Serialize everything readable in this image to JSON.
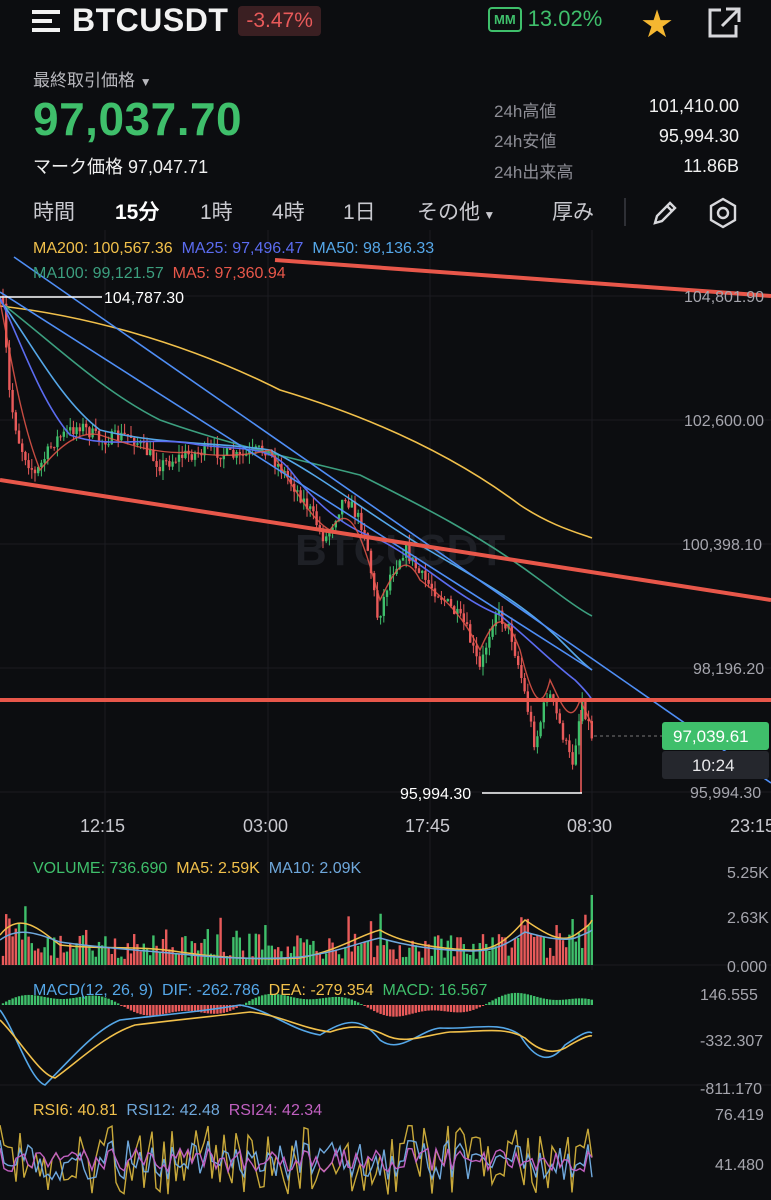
{
  "header": {
    "symbol": "BTCUSDT",
    "change_pct": "-3.47%",
    "mm_badge": "MM",
    "mm_pct": "13.02%",
    "star": "★"
  },
  "price_block": {
    "last_label": "最終取引価格",
    "last_price": "97,037.70",
    "mark_price": "マーク価格 97,047.71",
    "stats": [
      {
        "label": "24h高値",
        "value": "101,410.00"
      },
      {
        "label": "24h安値",
        "value": "95,994.30"
      },
      {
        "label": "24h出来高",
        "value": "11.86B"
      }
    ]
  },
  "tabs": {
    "items": [
      "時間",
      "15分",
      "1時",
      "4時",
      "1日",
      "その他",
      "厚み"
    ],
    "active": "15分"
  },
  "indicators": {
    "ma200": "MA200: 100,567.36",
    "ma25": "MA25: 97,496.47",
    "ma50": "MA50: 98,136.33",
    "ma100": "MA100: 99,121.57",
    "ma5": "MA5: 97,360.94"
  },
  "price_axis": [
    "104,801.90",
    "102,600.00",
    "100,398.10",
    "98,196.20",
    "95,994.30"
  ],
  "annotations": {
    "high_marker": "104,787.30",
    "low_marker": "95,994.30",
    "current_price_tag": "97,039.61",
    "countdown": "10:24"
  },
  "time_axis": [
    "12:15",
    "03:00",
    "17:45",
    "08:30",
    "23:15"
  ],
  "volume": {
    "label": "VOLUME: 736.690",
    "ma5": "MA5: 2.59K",
    "ma10": "MA10: 2.09K",
    "axis": [
      "5.25K",
      "2.63K",
      "0.000"
    ]
  },
  "macd": {
    "label": "MACD(12, 26, 9)",
    "dif": "DIF: -262.786",
    "dea": "DEA: -279.354",
    "macd": "MACD: 16.567",
    "axis": [
      "146.555",
      "-332.307",
      "-811.170"
    ]
  },
  "rsi": {
    "rsi6": "RSI6: 40.81",
    "rsi12": "RSI12: 42.48",
    "rsi24": "RSI24: 42.34",
    "axis": [
      "76.419",
      "41.480"
    ]
  },
  "colors": {
    "up": "#3fbf6b",
    "down": "#e85a5a",
    "trendline": "#e8574a",
    "ma200": "#f1c04b",
    "ma25": "#5b6cf0",
    "ma50": "#55a7e8",
    "ma100": "#3c9f7f",
    "ma5": "#e8574a"
  }
}
